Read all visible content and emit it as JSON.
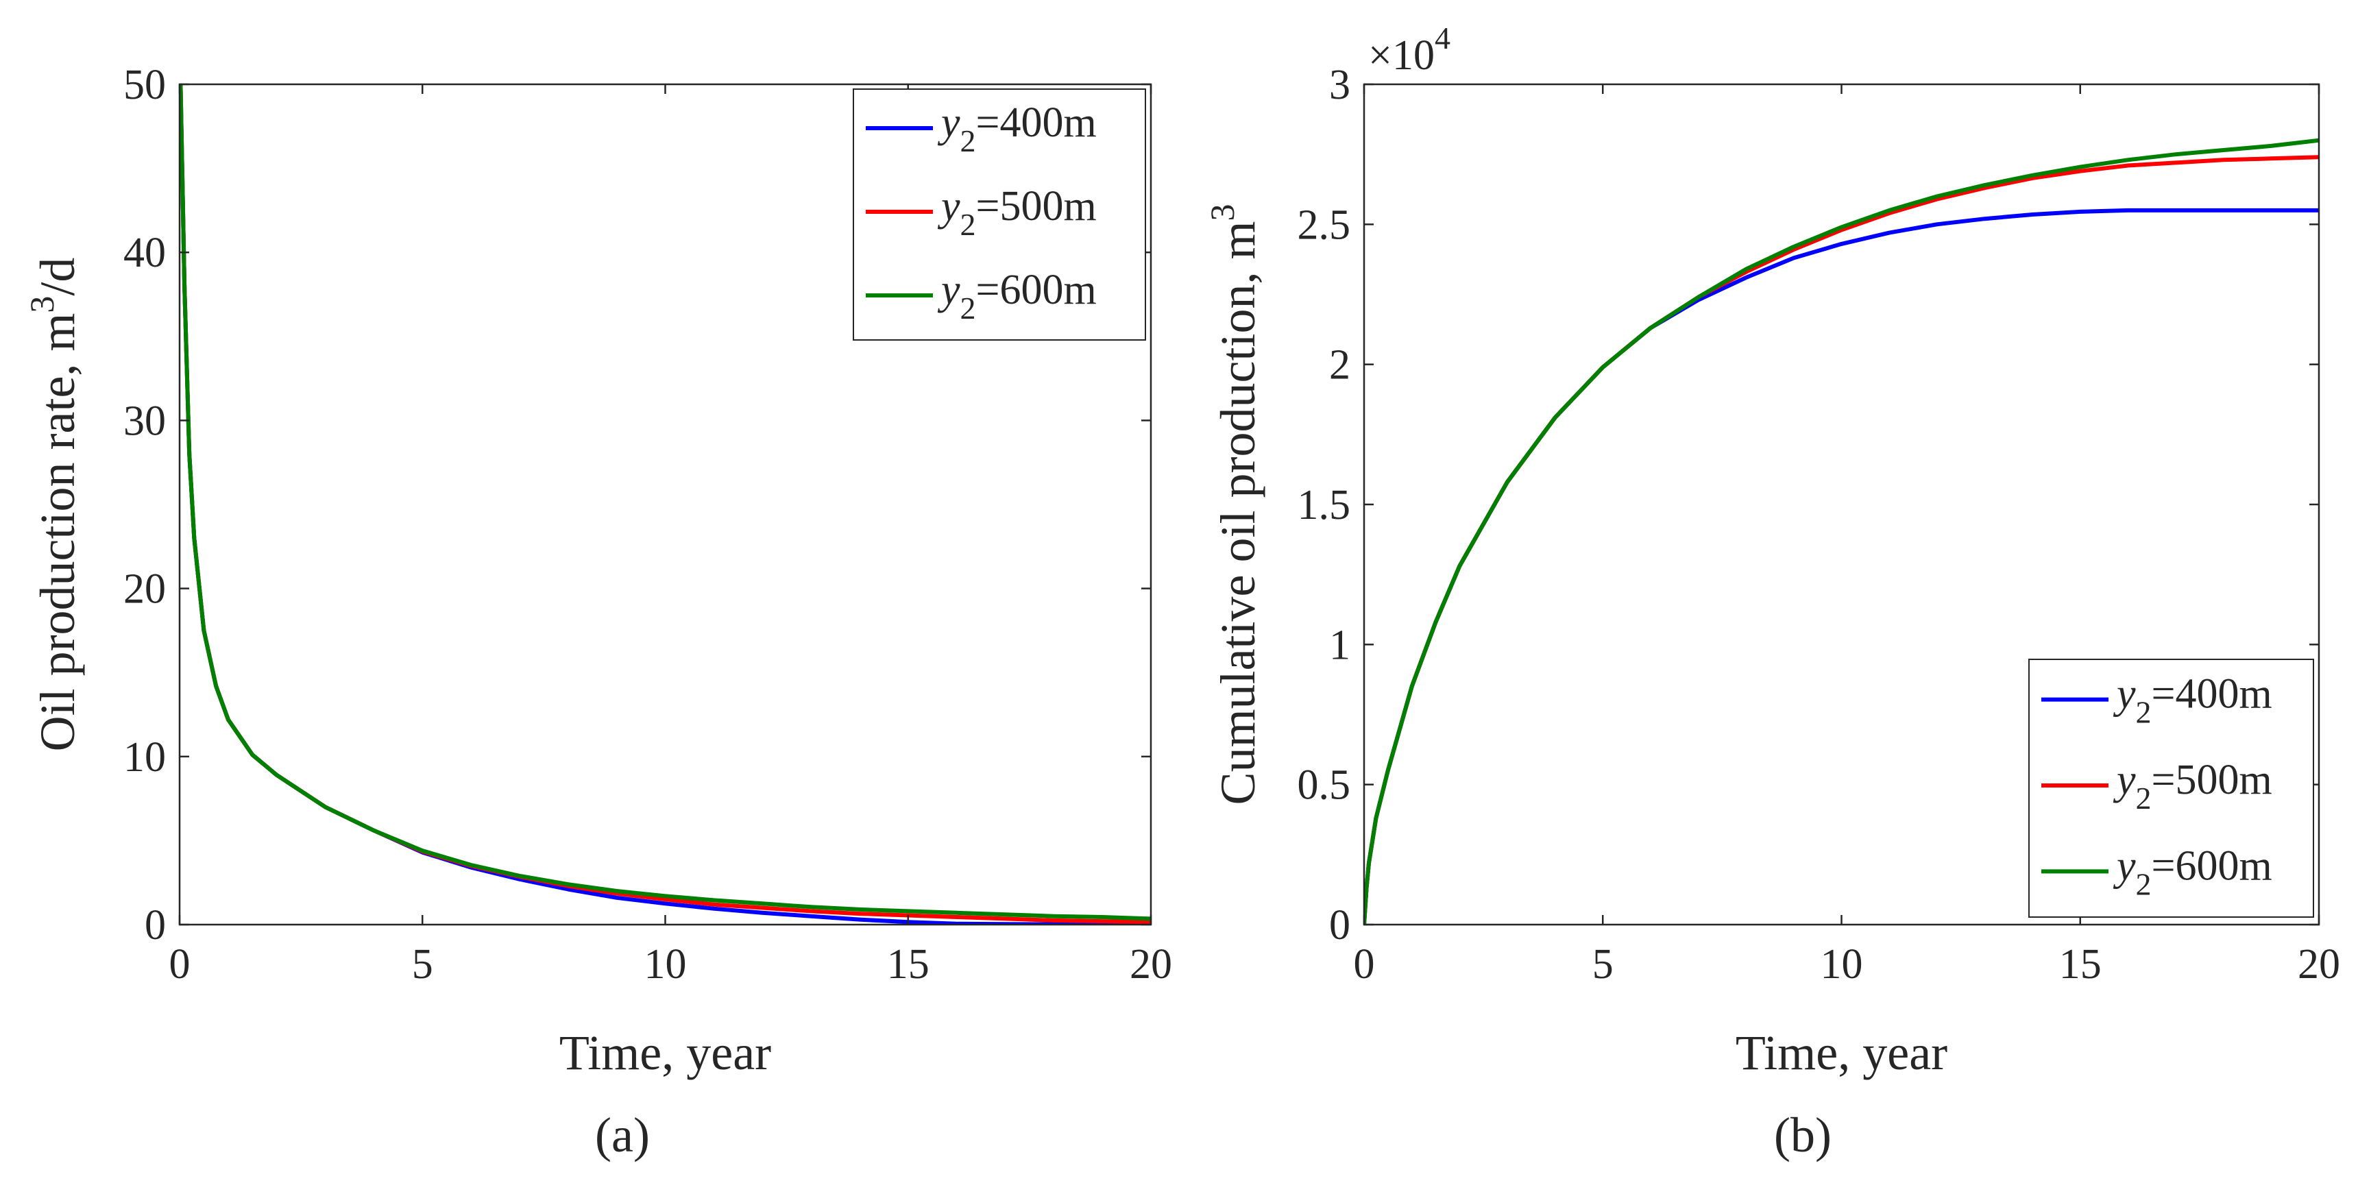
{
  "chart_data": [
    {
      "type": "line",
      "panel": "(a)",
      "xlabel": "Time, year",
      "ylabel": "Oil production rate, m³/d",
      "ylabel_main": "Oil production rate, m",
      "ylabel_sup": "3",
      "ylabel_tail": "/d",
      "xlim": [
        0,
        20
      ],
      "ylim": [
        0,
        50
      ],
      "xticks": [
        0,
        5,
        10,
        15,
        20
      ],
      "yticks": [
        0,
        10,
        20,
        30,
        40,
        50
      ],
      "xtick_labels": [
        "0",
        "5",
        "10",
        "15",
        "20"
      ],
      "ytick_labels": [
        "0",
        "10",
        "20",
        "30",
        "40",
        "50"
      ],
      "legend_position": "top-right",
      "series": [
        {
          "name": "y2=400m",
          "legend_var": "y",
          "legend_sub": "2",
          "legend_text": "=400m",
          "color": "#0000ff",
          "x": [
            0.02,
            0.1,
            0.2,
            0.3,
            0.5,
            0.75,
            1,
            1.5,
            2,
            3,
            4,
            5,
            6,
            7,
            8,
            9,
            10,
            11,
            12,
            13,
            14,
            15,
            16,
            17,
            18,
            19,
            20
          ],
          "y": [
            50,
            38,
            28,
            23,
            17.5,
            14.2,
            12.2,
            10.1,
            8.9,
            7.0,
            5.6,
            4.3,
            3.4,
            2.7,
            2.1,
            1.6,
            1.25,
            0.95,
            0.7,
            0.5,
            0.3,
            0.15,
            0.05,
            0.03,
            0.02,
            0.02,
            0.02
          ]
        },
        {
          "name": "y2=500m",
          "legend_var": "y",
          "legend_sub": "2",
          "legend_text": "=500m",
          "color": "#ff0000",
          "x": [
            0.02,
            0.1,
            0.2,
            0.3,
            0.5,
            0.75,
            1,
            1.5,
            2,
            3,
            4,
            5,
            6,
            7,
            8,
            9,
            10,
            11,
            12,
            13,
            14,
            15,
            16,
            17,
            18,
            19,
            20
          ],
          "y": [
            50,
            38,
            28,
            23,
            17.5,
            14.2,
            12.2,
            10.1,
            8.9,
            7.0,
            5.6,
            4.35,
            3.5,
            2.85,
            2.3,
            1.85,
            1.5,
            1.2,
            1.0,
            0.8,
            0.65,
            0.55,
            0.45,
            0.35,
            0.25,
            0.2,
            0.15
          ]
        },
        {
          "name": "y2=600m",
          "legend_var": "y",
          "legend_sub": "2",
          "legend_text": "=600m",
          "color": "#008000",
          "x": [
            0.02,
            0.1,
            0.2,
            0.3,
            0.5,
            0.75,
            1,
            1.5,
            2,
            3,
            4,
            5,
            6,
            7,
            8,
            9,
            10,
            11,
            12,
            13,
            14,
            15,
            16,
            17,
            18,
            19,
            20
          ],
          "y": [
            50,
            38,
            28,
            23,
            17.5,
            14.2,
            12.2,
            10.1,
            8.9,
            7.0,
            5.6,
            4.4,
            3.55,
            2.9,
            2.4,
            2.0,
            1.7,
            1.45,
            1.25,
            1.05,
            0.9,
            0.8,
            0.7,
            0.6,
            0.5,
            0.45,
            0.35
          ]
        }
      ]
    },
    {
      "type": "line",
      "panel": "(b)",
      "xlabel": "Time, year",
      "ylabel": "Cumulative oil production, m³",
      "ylabel_main": "Cumulative oil production, m",
      "ylabel_sup": "3",
      "ylabel_tail": "",
      "multiplier_base": "×10",
      "multiplier_exp": "4",
      "xlim": [
        0,
        20
      ],
      "ylim": [
        0,
        3
      ],
      "xticks": [
        0,
        5,
        10,
        15,
        20
      ],
      "yticks": [
        0,
        0.5,
        1,
        1.5,
        2,
        2.5,
        3
      ],
      "xtick_labels": [
        "0",
        "5",
        "10",
        "15",
        "20"
      ],
      "ytick_labels": [
        "0",
        "0.5",
        "1",
        "1.5",
        "2",
        "2.5",
        "3"
      ],
      "legend_position": "bottom-right",
      "series": [
        {
          "name": "y2=400m",
          "legend_var": "y",
          "legend_sub": "2",
          "legend_text": "=400m",
          "color": "#0000ff",
          "x": [
            0,
            0.05,
            0.1,
            0.25,
            0.5,
            1,
            1.5,
            2,
            3,
            4,
            5,
            6,
            7,
            8,
            9,
            10,
            11,
            12,
            13,
            14,
            15,
            16,
            17,
            18,
            19,
            20
          ],
          "y": [
            0,
            0.13,
            0.22,
            0.38,
            0.55,
            0.85,
            1.08,
            1.28,
            1.58,
            1.81,
            1.99,
            2.13,
            2.23,
            2.31,
            2.38,
            2.43,
            2.47,
            2.5,
            2.52,
            2.535,
            2.545,
            2.55,
            2.55,
            2.55,
            2.55,
            2.55
          ]
        },
        {
          "name": "y2=500m",
          "legend_var": "y",
          "legend_sub": "2",
          "legend_text": "=500m",
          "color": "#ff0000",
          "x": [
            0,
            0.05,
            0.1,
            0.25,
            0.5,
            1,
            1.5,
            2,
            3,
            4,
            5,
            6,
            7,
            8,
            9,
            10,
            11,
            12,
            13,
            14,
            15,
            16,
            17,
            18,
            19,
            20
          ],
          "y": [
            0,
            0.13,
            0.22,
            0.38,
            0.55,
            0.85,
            1.08,
            1.28,
            1.58,
            1.81,
            1.99,
            2.13,
            2.24,
            2.33,
            2.41,
            2.48,
            2.54,
            2.59,
            2.63,
            2.665,
            2.69,
            2.71,
            2.72,
            2.73,
            2.735,
            2.74
          ]
        },
        {
          "name": "y2=600m",
          "legend_var": "y",
          "legend_sub": "2",
          "legend_text": "=600m",
          "color": "#008000",
          "x": [
            0,
            0.05,
            0.1,
            0.25,
            0.5,
            1,
            1.5,
            2,
            3,
            4,
            5,
            6,
            7,
            8,
            9,
            10,
            11,
            12,
            13,
            14,
            15,
            16,
            17,
            18,
            19,
            20
          ],
          "y": [
            0,
            0.13,
            0.22,
            0.38,
            0.55,
            0.85,
            1.08,
            1.28,
            1.58,
            1.81,
            1.99,
            2.13,
            2.24,
            2.34,
            2.42,
            2.49,
            2.55,
            2.6,
            2.64,
            2.675,
            2.705,
            2.73,
            2.75,
            2.765,
            2.78,
            2.8
          ]
        }
      ]
    }
  ]
}
